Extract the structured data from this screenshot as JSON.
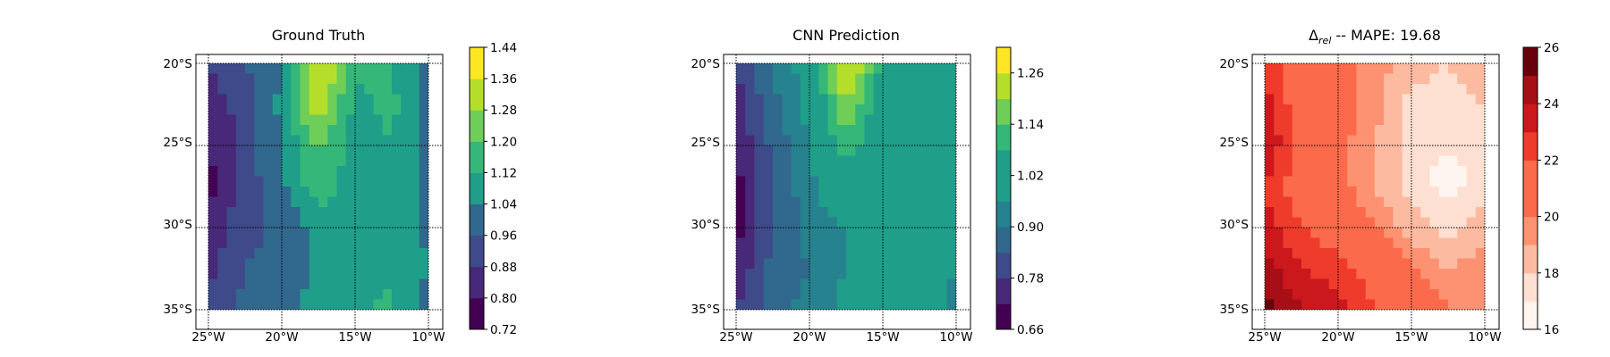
{
  "colors": {
    "viridis": [
      "#440154",
      "#482878",
      "#3e4a89",
      "#31688e",
      "#26828e",
      "#1f9e89",
      "#35b779",
      "#6ece58",
      "#b5de2b",
      "#fde725"
    ],
    "reds": [
      "#fff5f0",
      "#fee0d2",
      "#fcbba1",
      "#fc9272",
      "#fb6a4a",
      "#ef3b2c",
      "#cb181d",
      "#a50f15",
      "#67000d"
    ],
    "frame": "#000000",
    "grid": "#000000"
  },
  "chart_data": [
    {
      "type": "heatmap",
      "title": "Ground Truth",
      "colormap": "viridis",
      "x_ticks": [
        "25°W",
        "20°W",
        "15°W",
        "10°W"
      ],
      "y_ticks": [
        "20°S",
        "25°S",
        "30°S",
        "35°S"
      ],
      "xlim": [
        -25,
        -10
      ],
      "ylim": [
        -35,
        -20
      ],
      "grid": true,
      "colorbar": {
        "min": 0.72,
        "max": 1.44,
        "levels": [
          0.72,
          0.8,
          0.88,
          0.96,
          1.04,
          1.12,
          1.2,
          1.28,
          1.36,
          1.44
        ],
        "tick_labels": [
          "0.72",
          "0.80",
          "0.88",
          "0.96",
          "1.04",
          "1.12",
          "1.20",
          "1.28",
          "1.36",
          "1.44"
        ]
      },
      "x": [
        -25,
        -22.5,
        -20,
        -17.5,
        -15,
        -12.5,
        -10
      ],
      "y": [
        -20,
        -22.5,
        -25,
        -27.5,
        -30,
        -32.5,
        -35
      ],
      "z": [
        [
          0.9,
          0.96,
          1.04,
          1.4,
          1.14,
          1.12,
          1.0
        ],
        [
          0.82,
          0.92,
          1.06,
          1.33,
          1.1,
          1.14,
          1.02
        ],
        [
          0.8,
          0.92,
          1.04,
          1.22,
          1.08,
          1.12,
          1.02
        ],
        [
          0.76,
          0.92,
          1.02,
          1.18,
          1.06,
          1.1,
          1.02
        ],
        [
          0.82,
          0.94,
          0.98,
          1.06,
          1.04,
          1.1,
          1.02
        ],
        [
          0.86,
          0.96,
          0.98,
          1.06,
          1.08,
          1.1,
          1.04
        ],
        [
          0.92,
          0.98,
          1.0,
          1.08,
          1.1,
          1.14,
          1.0
        ]
      ]
    },
    {
      "type": "heatmap",
      "title": "CNN Prediction",
      "colormap": "viridis",
      "x_ticks": [
        "25°W",
        "20°W",
        "15°W",
        "10°W"
      ],
      "y_ticks": [
        "20°S",
        "25°S",
        "30°S",
        "35°S"
      ],
      "xlim": [
        -25,
        -10
      ],
      "ylim": [
        -35,
        -20
      ],
      "grid": true,
      "colorbar": {
        "min": 0.66,
        "max": 1.32,
        "levels": [
          0.66,
          0.72,
          0.78,
          0.84,
          0.9,
          0.96,
          1.02,
          1.08,
          1.14,
          1.2,
          1.26,
          1.32
        ],
        "tick_labels": [
          "0.66",
          "0.78",
          "0.90",
          "1.02",
          "1.14",
          "1.26"
        ]
      },
      "x": [
        -25,
        -22.5,
        -20,
        -17.5,
        -15,
        -12.5,
        -10
      ],
      "y": [
        -20,
        -22.5,
        -25,
        -27.5,
        -30,
        -32.5,
        -35
      ],
      "z": [
        [
          0.8,
          0.92,
          1.0,
          1.3,
          1.06,
          1.02,
          0.96
        ],
        [
          0.74,
          0.88,
          0.98,
          1.2,
          1.04,
          1.06,
          0.98
        ],
        [
          0.72,
          0.86,
          0.96,
          1.12,
          1.0,
          1.02,
          0.96
        ],
        [
          0.7,
          0.84,
          0.94,
          1.04,
          0.98,
          1.02,
          0.96
        ],
        [
          0.68,
          0.84,
          0.92,
          0.96,
          0.96,
          1.0,
          0.96
        ],
        [
          0.74,
          0.86,
          0.9,
          0.96,
          0.98,
          1.0,
          0.96
        ],
        [
          0.78,
          0.88,
          0.92,
          0.98,
          1.0,
          1.02,
          0.94
        ]
      ]
    },
    {
      "type": "heatmap",
      "title": "Δrel -- MAPE: 19.68",
      "title_parts": {
        "symbol": "Δ",
        "subscript": "rel",
        "rest": " -- MAPE: 19.68"
      },
      "colormap": "reds",
      "x_ticks": [
        "25°W",
        "20°W",
        "15°W",
        "10°W"
      ],
      "y_ticks": [
        "20°S",
        "25°S",
        "30°S",
        "35°S"
      ],
      "xlim": [
        -25,
        -10
      ],
      "ylim": [
        -35,
        -20
      ],
      "grid": true,
      "colorbar": {
        "min": 16,
        "max": 26,
        "levels": [
          16,
          17,
          18,
          19,
          20,
          21,
          22,
          23,
          24,
          25,
          26
        ],
        "tick_labels": [
          "16",
          "18",
          "20",
          "22",
          "24",
          "26"
        ]
      },
      "x": [
        -25,
        -22.5,
        -20,
        -17.5,
        -15,
        -12.5,
        -10
      ],
      "y": [
        -20,
        -22.5,
        -25,
        -27.5,
        -30,
        -32.5,
        -35
      ],
      "z": [
        [
          22.5,
          21.0,
          20.5,
          19.5,
          18.5,
          18.0,
          18.5
        ],
        [
          23.5,
          21.0,
          20.5,
          19.5,
          17.5,
          17.5,
          18.0
        ],
        [
          24.0,
          21.5,
          20.5,
          19.0,
          17.5,
          17.0,
          17.5
        ],
        [
          23.0,
          21.0,
          20.5,
          19.0,
          17.5,
          16.5,
          17.5
        ],
        [
          23.5,
          22.0,
          21.0,
          20.0,
          18.5,
          17.5,
          18.5
        ],
        [
          24.5,
          23.0,
          22.5,
          21.5,
          20.0,
          19.0,
          19.5
        ],
        [
          25.5,
          24.0,
          23.5,
          22.0,
          21.0,
          20.0,
          20.0
        ]
      ]
    }
  ]
}
